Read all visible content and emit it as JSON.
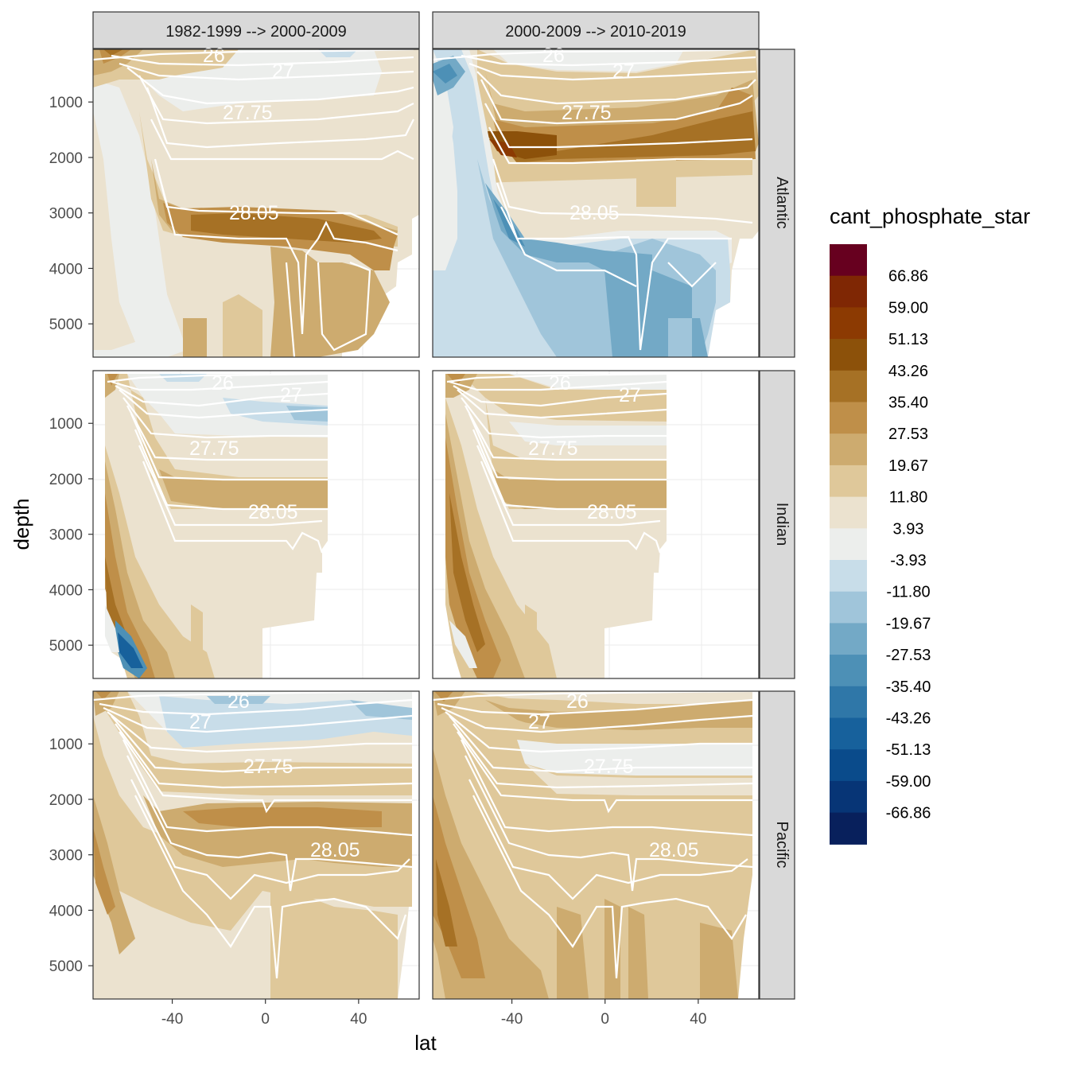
{
  "chart_data": {
    "type": "heatmap",
    "subtype": "faceted filled-contour sections",
    "xlabel": "lat",
    "ylabel": "depth",
    "x_ticks": [
      -40,
      0,
      40
    ],
    "x_tick_labels": [
      "-40",
      "0",
      "40"
    ],
    "xlim": [
      -74,
      66
    ],
    "y_ticks": [
      1000,
      2000,
      3000,
      4000,
      5000
    ],
    "y_tick_labels": [
      "1000",
      "2000",
      "3000",
      "4000",
      "5000"
    ],
    "ylim": [
      5600,
      50
    ],
    "column_facets": [
      "1982-1999 --> 2000-2009",
      "2000-2009 --> 2010-2019"
    ],
    "row_facets": [
      "Atlantic",
      "Indian",
      "Pacific"
    ],
    "legend": {
      "title": "cant_phosphate_star",
      "colors": [
        "#67001f",
        "#7f2704",
        "#8c3a02",
        "#8c510a",
        "#a67125",
        "#bf8f49",
        "#cdab6f",
        "#dfc89a",
        "#ebe2cf",
        "#eceeec",
        "#c8dde9",
        "#a0c5da",
        "#73a9c6",
        "#4d90b6",
        "#2f77a8",
        "#17619c",
        "#0a4b8b",
        "#073576",
        "#08205c"
      ],
      "labels": [
        "66.86",
        "59.00",
        "51.13",
        "43.26",
        "35.40",
        "27.53",
        "19.67",
        "11.80",
        "3.93",
        "-3.93",
        "-11.80",
        "-19.67",
        "-27.53",
        "-35.40",
        "-43.26",
        "-51.13",
        "-59.00",
        "-66.86"
      ]
    },
    "contour_labels": [
      "26",
      "27",
      "27.75",
      "28.05"
    ],
    "panels": [
      {
        "row": "Atlantic",
        "col": "1982-1999 --> 2000-2009",
        "lat_range": [
          -74,
          65
        ],
        "max_depth": 5600,
        "summary": "positive (11.8-43.3) in upper and deep layers, strongest 27.5-43.3 along 28.05 isopycnal (2800-3500 m); near zero (-3.9-3.9) in surface waters and south of 50S",
        "min_class": -11.8,
        "max_class": 43.26
      },
      {
        "row": "Atlantic",
        "col": "2000-2009 --> 2010-2019",
        "lat_range": [
          -74,
          65
        ],
        "max_depth": 5600,
        "summary": "strong positive (35.4-59.0) at 1200-2000 m; negative (-3.9 to -35.4) in deep waters below 28.05 and south of 50S",
        "min_class": -35.4,
        "max_class": 59.0
      },
      {
        "row": "Indian",
        "col": "1982-1999 --> 2000-2009",
        "lat_range": [
          -74,
          24
        ],
        "max_depth": 5600,
        "summary": "positive (11.8-27.5) at 2000-2600 m and along Antarctic slope; negative (-3.9 to -59.0) near 60S bottom and small negative (-11.8) at 500-1000 m",
        "min_class": -59.0,
        "max_class": 35.4
      },
      {
        "row": "Indian",
        "col": "2000-2009 --> 2010-2019",
        "lat_range": [
          -74,
          24
        ],
        "max_depth": 5600,
        "summary": "positive (11.8-35.4) throughout, strongest along Antarctic slope; near zero at 1000-1300 m",
        "min_class": -11.8,
        "max_class": 35.4
      },
      {
        "row": "Pacific",
        "col": "1982-1999 --> 2000-2009",
        "lat_range": [
          -74,
          62
        ],
        "max_depth": 5600,
        "summary": "positive (19.7-27.5) at 2000-3500 m; negative (-3.9 to -11.8) at 500-1000 m; near zero (3.9-11.8) deep",
        "min_class": -11.8,
        "max_class": 35.4
      },
      {
        "row": "Pacific",
        "col": "2000-2009 --> 2010-2019",
        "lat_range": [
          -74,
          62
        ],
        "max_depth": 5600,
        "summary": "positive (11.8-27.5) throughout the water column; near zero at 800-1300 m",
        "min_class": -3.93,
        "max_class": 35.4
      }
    ]
  }
}
